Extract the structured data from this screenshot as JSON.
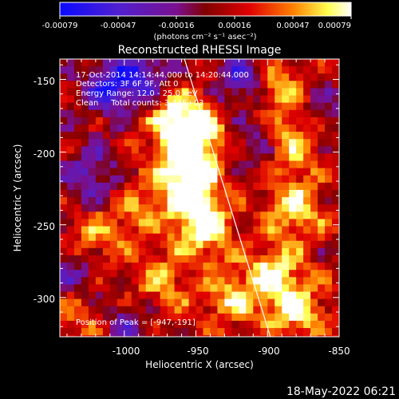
{
  "chart_data": {
    "type": "heatmap",
    "title": "Reconstructed RHESSI Image",
    "xlabel": "Heliocentric X (arcsec)",
    "ylabel": "Heliocentric Y (arcsec)",
    "xlim": [
      -1045,
      -850
    ],
    "ylim": [
      -327,
      -136
    ],
    "x_ticks": [
      -1000,
      -950,
      -900,
      -850
    ],
    "y_ticks": [
      -150,
      -200,
      -250,
      -300
    ],
    "colorbar": {
      "label": "(photons cm⁻² s⁻¹ asec⁻²)",
      "range": [
        -0.00079,
        0.00079
      ],
      "ticks": [
        "-0.00079",
        "-0.00047",
        "-0.00016",
        "0.00016",
        "0.00047",
        "0.00079"
      ],
      "colormap": "red-temperature with negative blue-purple",
      "colors": [
        "#1010ff",
        "#6020c0",
        "#7a1090",
        "#800000",
        "#e00000",
        "#ff8000",
        "#ffff60",
        "#ffffff"
      ]
    },
    "annotations": [
      "17-Oct-2014 14:14:44.000 to 14:20:44.000",
      "Detectors: 3F 6F 9F, Att 0",
      "Energy Range: 12.0 - 25.0 keV",
      "Clean     Total counts: 3.44E+03"
    ],
    "peak_label": "Position of Peak = [-947,-191]",
    "peak": [
      -947,
      -191
    ],
    "limb_line": [
      [
        -958,
        -136
      ],
      [
        -898,
        -327
      ]
    ],
    "bright_regions": [
      {
        "x": -950,
        "y": -191,
        "intensity": 1.0
      },
      {
        "x": -965,
        "y": -175,
        "intensity": 0.8
      },
      {
        "x": -960,
        "y": -215,
        "intensity": 0.75
      },
      {
        "x": -950,
        "y": -235,
        "intensity": 0.7
      },
      {
        "x": -945,
        "y": -255,
        "intensity": 0.65
      },
      {
        "x": -895,
        "y": -155,
        "intensity": 0.7
      },
      {
        "x": -885,
        "y": -195,
        "intensity": 0.75
      },
      {
        "x": -880,
        "y": -240,
        "intensity": 0.7
      },
      {
        "x": -895,
        "y": -285,
        "intensity": 0.75
      },
      {
        "x": -880,
        "y": -310,
        "intensity": 0.7
      },
      {
        "x": -925,
        "y": -300,
        "intensity": 0.6
      },
      {
        "x": -975,
        "y": -290,
        "intensity": 0.5
      },
      {
        "x": -1020,
        "y": -260,
        "intensity": 0.45
      },
      {
        "x": -1030,
        "y": -310,
        "intensity": 0.45
      },
      {
        "x": -990,
        "y": -240,
        "intensity": 0.4
      }
    ],
    "dark_regions": [
      {
        "x": -1010,
        "y": -155,
        "intensity": -0.8
      },
      {
        "x": -985,
        "y": -150,
        "intensity": -0.7
      },
      {
        "x": -915,
        "y": -150,
        "intensity": -0.75
      },
      {
        "x": -905,
        "y": -195,
        "intensity": -0.5
      },
      {
        "x": -1025,
        "y": -215,
        "intensity": -0.6
      },
      {
        "x": -1000,
        "y": -320,
        "intensity": -0.5
      },
      {
        "x": -860,
        "y": -170,
        "intensity": -0.3
      },
      {
        "x": -1035,
        "y": -285,
        "intensity": -0.5
      }
    ]
  },
  "footer": {
    "date": "18-May-2022 06:21"
  }
}
